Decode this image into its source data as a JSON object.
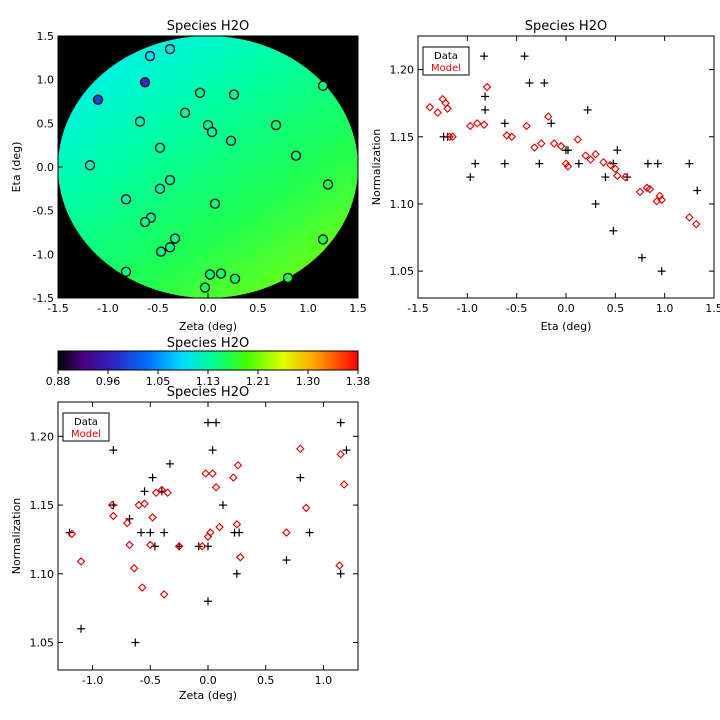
{
  "colors": {
    "data": "#000000",
    "model": "#e00000",
    "background": "#000000"
  },
  "map": {
    "title": "Species H2O",
    "xlabel": "Zeta (deg)",
    "ylabel": "Eta (deg)",
    "xlim": [
      -1.5,
      1.5
    ],
    "ylim": [
      -1.5,
      1.5
    ],
    "xticks": [
      "-1.5",
      "-1.0",
      "-0.5",
      "0.0",
      "0.5",
      "1.0",
      "1.5"
    ],
    "yticks": [
      "-1.5",
      "-1.0",
      "-0.5",
      "0.0",
      "0.5",
      "1.0",
      "1.5"
    ],
    "field_radius": 1.5,
    "field_gradient": {
      "top_left": 1.07,
      "center": 1.13,
      "bottom_right": 1.2
    }
  },
  "colorbar": {
    "title": "Species H2O",
    "range": [
      0.88,
      1.38
    ],
    "ticks": [
      "0.88",
      "0.96",
      "1.05",
      "1.13",
      "1.21",
      "1.30",
      "1.38"
    ]
  },
  "chart_data": [
    {
      "type": "scatter",
      "title": "Species H2O",
      "xlabel": "Zeta (deg)",
      "ylabel": "Eta (deg)",
      "xlim": [
        -1.5,
        1.5
      ],
      "ylim": [
        -1.5,
        1.5
      ],
      "points": [
        {
          "x": -1.1,
          "y": 0.77,
          "v": 1.0
        },
        {
          "x": -0.63,
          "y": 0.97,
          "v": 0.98
        },
        {
          "x": -0.58,
          "y": 1.27,
          "v": 1.09
        },
        {
          "x": -0.38,
          "y": 1.35,
          "v": 1.1
        },
        {
          "x": 1.15,
          "y": 0.93,
          "v": 1.15
        },
        {
          "x": -0.08,
          "y": 0.85,
          "v": 1.14
        },
        {
          "x": 0.26,
          "y": 0.83,
          "v": 1.14
        },
        {
          "x": -0.68,
          "y": 0.52,
          "v": 1.12
        },
        {
          "x": -0.23,
          "y": 0.62,
          "v": 1.13
        },
        {
          "x": 0.0,
          "y": 0.48,
          "v": 1.13
        },
        {
          "x": 0.04,
          "y": 0.4,
          "v": 1.13
        },
        {
          "x": 0.68,
          "y": 0.48,
          "v": 1.15
        },
        {
          "x": 0.23,
          "y": 0.3,
          "v": 1.14
        },
        {
          "x": -0.48,
          "y": 0.22,
          "v": 1.13
        },
        {
          "x": 0.88,
          "y": 0.13,
          "v": 1.15
        },
        {
          "x": -1.18,
          "y": 0.02,
          "v": 1.12
        },
        {
          "x": -0.38,
          "y": -0.15,
          "v": 1.13
        },
        {
          "x": -0.48,
          "y": -0.25,
          "v": 1.13
        },
        {
          "x": 1.2,
          "y": -0.2,
          "v": 1.17
        },
        {
          "x": -0.82,
          "y": -0.37,
          "v": 1.13
        },
        {
          "x": 0.07,
          "y": -0.42,
          "v": 1.14
        },
        {
          "x": -0.57,
          "y": -0.58,
          "v": 1.14
        },
        {
          "x": -0.63,
          "y": -0.63,
          "v": 1.14
        },
        {
          "x": -0.33,
          "y": -0.82,
          "v": 1.14
        },
        {
          "x": 1.15,
          "y": -0.83,
          "v": 1.17
        },
        {
          "x": -0.38,
          "y": -0.92,
          "v": 1.14
        },
        {
          "x": -0.47,
          "y": -0.97,
          "v": 1.14
        },
        {
          "x": -0.82,
          "y": -1.2,
          "v": 1.14
        },
        {
          "x": 0.02,
          "y": -1.23,
          "v": 1.15
        },
        {
          "x": 0.13,
          "y": -1.22,
          "v": 1.15
        },
        {
          "x": 0.27,
          "y": -1.28,
          "v": 1.16
        },
        {
          "x": 0.8,
          "y": -1.27,
          "v": 1.17
        },
        {
          "x": -0.03,
          "y": -1.38,
          "v": 1.16
        }
      ]
    },
    {
      "type": "scatter",
      "title": "Species H2O",
      "xlabel": "Eta (deg)",
      "ylabel": "Normalization",
      "xlim": [
        -1.5,
        1.5
      ],
      "ylim": [
        1.03,
        1.225
      ],
      "xticks": [
        "-1.5",
        "-1.0",
        "-0.5",
        "0.0",
        "0.5",
        "1.0",
        "1.5"
      ],
      "yticks": [
        "1.05",
        "1.10",
        "1.15",
        "1.20"
      ],
      "legend_position": "top-left",
      "series": [
        {
          "name": "Data",
          "marker": "plus",
          "points": [
            {
              "x": -1.34,
              "y": 1.21
            },
            {
              "x": -1.24,
              "y": 1.15
            },
            {
              "x": -1.2,
              "y": 1.15
            },
            {
              "x": -0.97,
              "y": 1.12
            },
            {
              "x": -0.92,
              "y": 1.13
            },
            {
              "x": -0.83,
              "y": 1.21
            },
            {
              "x": -0.82,
              "y": 1.18
            },
            {
              "x": -0.82,
              "y": 1.17
            },
            {
              "x": -0.62,
              "y": 1.16
            },
            {
              "x": -0.62,
              "y": 1.13
            },
            {
              "x": -0.42,
              "y": 1.21
            },
            {
              "x": -0.37,
              "y": 1.19
            },
            {
              "x": -0.27,
              "y": 1.13
            },
            {
              "x": -0.22,
              "y": 1.19
            },
            {
              "x": -0.15,
              "y": 1.16
            },
            {
              "x": 0.0,
              "y": 1.14
            },
            {
              "x": 0.02,
              "y": 1.14
            },
            {
              "x": 0.13,
              "y": 1.13
            },
            {
              "x": 0.22,
              "y": 1.17
            },
            {
              "x": 0.3,
              "y": 1.1
            },
            {
              "x": 0.4,
              "y": 1.12
            },
            {
              "x": 0.48,
              "y": 1.08
            },
            {
              "x": 0.48,
              "y": 1.13
            },
            {
              "x": 0.52,
              "y": 1.14
            },
            {
              "x": 0.62,
              "y": 1.12
            },
            {
              "x": 0.77,
              "y": 1.06
            },
            {
              "x": 0.83,
              "y": 1.13
            },
            {
              "x": 0.93,
              "y": 1.13
            },
            {
              "x": 0.97,
              "y": 1.05
            },
            {
              "x": 1.25,
              "y": 1.13
            },
            {
              "x": 1.33,
              "y": 1.11
            }
          ]
        },
        {
          "name": "Model",
          "marker": "diamond",
          "points": [
            {
              "x": -1.38,
              "y": 1.172
            },
            {
              "x": -1.3,
              "y": 1.168
            },
            {
              "x": -1.25,
              "y": 1.178
            },
            {
              "x": -1.22,
              "y": 1.175
            },
            {
              "x": -1.2,
              "y": 1.171
            },
            {
              "x": -1.18,
              "y": 1.15
            },
            {
              "x": -1.15,
              "y": 1.15
            },
            {
              "x": -0.97,
              "y": 1.158
            },
            {
              "x": -0.9,
              "y": 1.16
            },
            {
              "x": -0.8,
              "y": 1.187
            },
            {
              "x": -0.83,
              "y": 1.159
            },
            {
              "x": -0.6,
              "y": 1.151
            },
            {
              "x": -0.55,
              "y": 1.15
            },
            {
              "x": -0.4,
              "y": 1.158
            },
            {
              "x": -0.32,
              "y": 1.142
            },
            {
              "x": -0.25,
              "y": 1.145
            },
            {
              "x": -0.18,
              "y": 1.165
            },
            {
              "x": -0.12,
              "y": 1.145
            },
            {
              "x": -0.05,
              "y": 1.143
            },
            {
              "x": 0.0,
              "y": 1.13
            },
            {
              "x": 0.02,
              "y": 1.128
            },
            {
              "x": 0.12,
              "y": 1.148
            },
            {
              "x": 0.2,
              "y": 1.136
            },
            {
              "x": 0.25,
              "y": 1.133
            },
            {
              "x": 0.3,
              "y": 1.137
            },
            {
              "x": 0.38,
              "y": 1.131
            },
            {
              "x": 0.45,
              "y": 1.129
            },
            {
              "x": 0.5,
              "y": 1.126
            },
            {
              "x": 0.52,
              "y": 1.121
            },
            {
              "x": 0.6,
              "y": 1.12
            },
            {
              "x": 0.75,
              "y": 1.109
            },
            {
              "x": 0.82,
              "y": 1.112
            },
            {
              "x": 0.85,
              "y": 1.111
            },
            {
              "x": 0.92,
              "y": 1.102
            },
            {
              "x": 0.95,
              "y": 1.106
            },
            {
              "x": 0.97,
              "y": 1.103
            },
            {
              "x": 1.25,
              "y": 1.09
            },
            {
              "x": 1.32,
              "y": 1.085
            }
          ]
        }
      ]
    },
    {
      "type": "scatter",
      "title": "Species H2O",
      "xlabel": "Zeta (deg)",
      "ylabel": "Normalization",
      "xlim": [
        -1.3,
        1.3
      ],
      "ylim": [
        1.03,
        1.225
      ],
      "xticks": [
        "-1.0",
        "-0.5",
        "0.0",
        "0.5",
        "1.0"
      ],
      "yticks": [
        "1.05",
        "1.10",
        "1.15",
        "1.20"
      ],
      "legend_position": "top-left",
      "series": [
        {
          "name": "Data",
          "marker": "plus",
          "points": [
            {
              "x": -1.2,
              "y": 1.13
            },
            {
              "x": -1.1,
              "y": 1.06
            },
            {
              "x": -0.82,
              "y": 1.19
            },
            {
              "x": -0.82,
              "y": 1.15
            },
            {
              "x": -0.68,
              "y": 1.14
            },
            {
              "x": -0.63,
              "y": 1.05
            },
            {
              "x": -0.58,
              "y": 1.13
            },
            {
              "x": -0.55,
              "y": 1.16
            },
            {
              "x": -0.5,
              "y": 1.13
            },
            {
              "x": -0.48,
              "y": 1.17
            },
            {
              "x": -0.46,
              "y": 1.12
            },
            {
              "x": -0.4,
              "y": 1.16
            },
            {
              "x": -0.38,
              "y": 1.13
            },
            {
              "x": -0.33,
              "y": 1.18
            },
            {
              "x": -0.25,
              "y": 1.12
            },
            {
              "x": -0.08,
              "y": 1.12
            },
            {
              "x": 0.0,
              "y": 1.21
            },
            {
              "x": 0.0,
              "y": 1.12
            },
            {
              "x": 0.0,
              "y": 1.08
            },
            {
              "x": 0.04,
              "y": 1.19
            },
            {
              "x": 0.07,
              "y": 1.21
            },
            {
              "x": 0.13,
              "y": 1.15
            },
            {
              "x": 0.23,
              "y": 1.13
            },
            {
              "x": 0.25,
              "y": 1.1
            },
            {
              "x": 0.27,
              "y": 1.13
            },
            {
              "x": 0.68,
              "y": 1.11
            },
            {
              "x": 0.8,
              "y": 1.17
            },
            {
              "x": 0.88,
              "y": 1.13
            },
            {
              "x": 1.15,
              "y": 1.21
            },
            {
              "x": 1.15,
              "y": 1.1
            },
            {
              "x": 1.2,
              "y": 1.19
            }
          ]
        },
        {
          "name": "Model",
          "marker": "diamond",
          "points": [
            {
              "x": -1.18,
              "y": 1.129
            },
            {
              "x": -1.1,
              "y": 1.109
            },
            {
              "x": -0.83,
              "y": 1.15
            },
            {
              "x": -0.82,
              "y": 1.142
            },
            {
              "x": -0.7,
              "y": 1.137
            },
            {
              "x": -0.68,
              "y": 1.121
            },
            {
              "x": -0.64,
              "y": 1.104
            },
            {
              "x": -0.6,
              "y": 1.15
            },
            {
              "x": -0.57,
              "y": 1.09
            },
            {
              "x": -0.55,
              "y": 1.151
            },
            {
              "x": -0.5,
              "y": 1.121
            },
            {
              "x": -0.48,
              "y": 1.141
            },
            {
              "x": -0.45,
              "y": 1.159
            },
            {
              "x": -0.4,
              "y": 1.161
            },
            {
              "x": -0.38,
              "y": 1.085
            },
            {
              "x": -0.35,
              "y": 1.159
            },
            {
              "x": -0.25,
              "y": 1.12
            },
            {
              "x": -0.05,
              "y": 1.12
            },
            {
              "x": -0.02,
              "y": 1.173
            },
            {
              "x": 0.0,
              "y": 1.127
            },
            {
              "x": 0.02,
              "y": 1.13
            },
            {
              "x": 0.04,
              "y": 1.173
            },
            {
              "x": 0.07,
              "y": 1.163
            },
            {
              "x": 0.1,
              "y": 1.134
            },
            {
              "x": 0.22,
              "y": 1.17
            },
            {
              "x": 0.25,
              "y": 1.136
            },
            {
              "x": 0.26,
              "y": 1.179
            },
            {
              "x": 0.28,
              "y": 1.112
            },
            {
              "x": 0.68,
              "y": 1.13
            },
            {
              "x": 0.8,
              "y": 1.191
            },
            {
              "x": 0.85,
              "y": 1.148
            },
            {
              "x": 1.14,
              "y": 1.106
            },
            {
              "x": 1.15,
              "y": 1.187
            },
            {
              "x": 1.18,
              "y": 1.165
            }
          ]
        }
      ]
    }
  ]
}
